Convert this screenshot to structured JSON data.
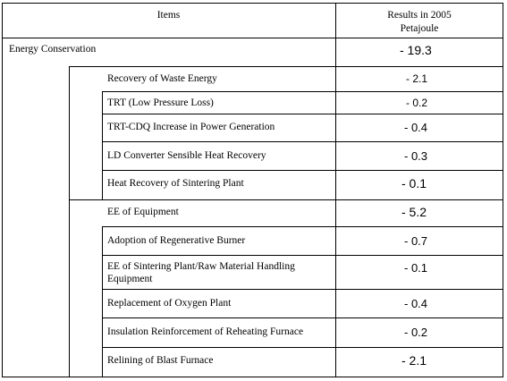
{
  "header": {
    "items": "Items",
    "results_line1": "Results in 2005",
    "results_line2": "Petajoule"
  },
  "total": {
    "label": "Energy Conservation",
    "value": "- 19.3"
  },
  "groups": [
    {
      "label": "Recovery of Waste Energy",
      "value": "- 2.1",
      "items": [
        {
          "label": "TRT (Low Pressure Loss)",
          "value": "- 0.2"
        },
        {
          "label": "TRT-CDQ Increase  in Power Generation",
          "value": "- 0.4"
        },
        {
          "label": "LD Converter  Sensible Heat Recovery",
          "value": "- 0.3"
        },
        {
          "label": "Heat Recovery of Sintering Plant",
          "value": "- 0.1"
        }
      ]
    },
    {
      "label": "EE of Equipment",
      "value": "- 5.2",
      "items": [
        {
          "label": "Adoption of Regenerative Burner",
          "value": "- 0.7"
        },
        {
          "label_line1": "EE of Sintering Plant/Raw Material Handling",
          "label_line2": "Equipment",
          "value": "- 0.1"
        },
        {
          "label": "Replacement of Oxygen Plant",
          "value": "- 0.4"
        },
        {
          "label": "Insulation Reinforcement  of  Reheating Furnace",
          "value": "- 0.2"
        },
        {
          "label": "Relining of Blast Furnace",
          "value": "- 2.1"
        }
      ]
    }
  ]
}
